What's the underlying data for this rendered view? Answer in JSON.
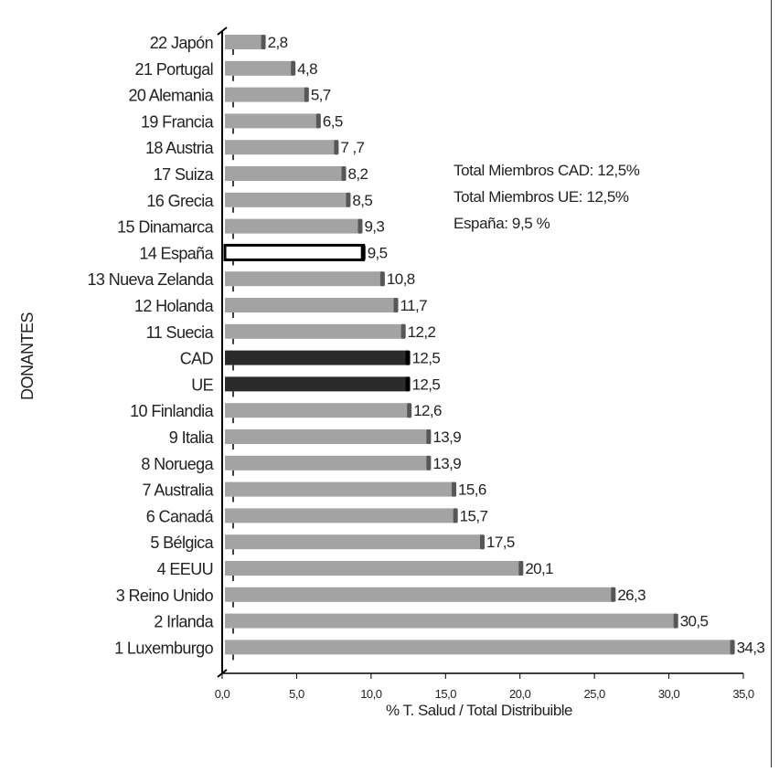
{
  "chart_data": {
    "type": "bar",
    "orientation": "horizontal",
    "ylabel": "DONANTES",
    "xlabel": "% T. Salud / Total Distribuible",
    "xlim": [
      0,
      35
    ],
    "x_ticks": [
      "0,0",
      "5,0",
      "10,0",
      "15,0",
      "20,0",
      "25,0",
      "30,0",
      "35,0"
    ],
    "grid": false,
    "annotation": [
      "Total Miembros CAD: 12,5%",
      "Total Miembros UE: 12,5%",
      "España: 9,5 %"
    ],
    "categories": [
      "22 Japón",
      "21 Portugal",
      "20 Alemania",
      "19 Francia",
      "18 Austria",
      "17 Suiza",
      "16 Grecia",
      "15 Dinamarca",
      "14 España",
      "13 Nueva Zelanda",
      "12 Holanda",
      "11 Suecia",
      "CAD",
      "UE",
      "10 Finlandia",
      "9 Italia",
      "8 Noruega",
      "7 Australia",
      "6 Canadá",
      "5 Bélgica",
      "4 EEUU",
      "3 Reino Unido",
      "2 Irlanda",
      "1 Luxemburgo"
    ],
    "values": [
      2.8,
      4.8,
      5.7,
      6.5,
      7.7,
      8.2,
      8.5,
      9.3,
      9.5,
      10.8,
      11.7,
      12.2,
      12.5,
      12.5,
      12.6,
      13.9,
      13.9,
      15.6,
      15.7,
      17.5,
      20.1,
      26.3,
      30.5,
      34.3
    ],
    "value_labels": [
      "2,8",
      "4,8",
      "5,7",
      "6,5",
      "7 ,7",
      "8,2",
      "8,5",
      "9,3",
      "9,5",
      "10,8",
      "11,7",
      "12,2",
      "12,5",
      "12,5",
      "12,6",
      "13,9",
      "13,9",
      "15,6",
      "15,7",
      "17,5",
      "20,1",
      "26,3",
      "30,5",
      "34,3"
    ],
    "bar_style": [
      "gray",
      "gray",
      "gray",
      "gray",
      "gray",
      "gray",
      "gray",
      "gray",
      "white",
      "gray",
      "gray",
      "gray",
      "dark",
      "dark",
      "gray",
      "gray",
      "gray",
      "gray",
      "gray",
      "gray",
      "gray",
      "gray",
      "gray",
      "gray"
    ],
    "colors": {
      "gray_fill": "#a3a3a3",
      "gray_end": "#575757",
      "dark_fill": "#2b2b2b",
      "white_fill": "#ffffff",
      "axis": "#000000"
    }
  }
}
